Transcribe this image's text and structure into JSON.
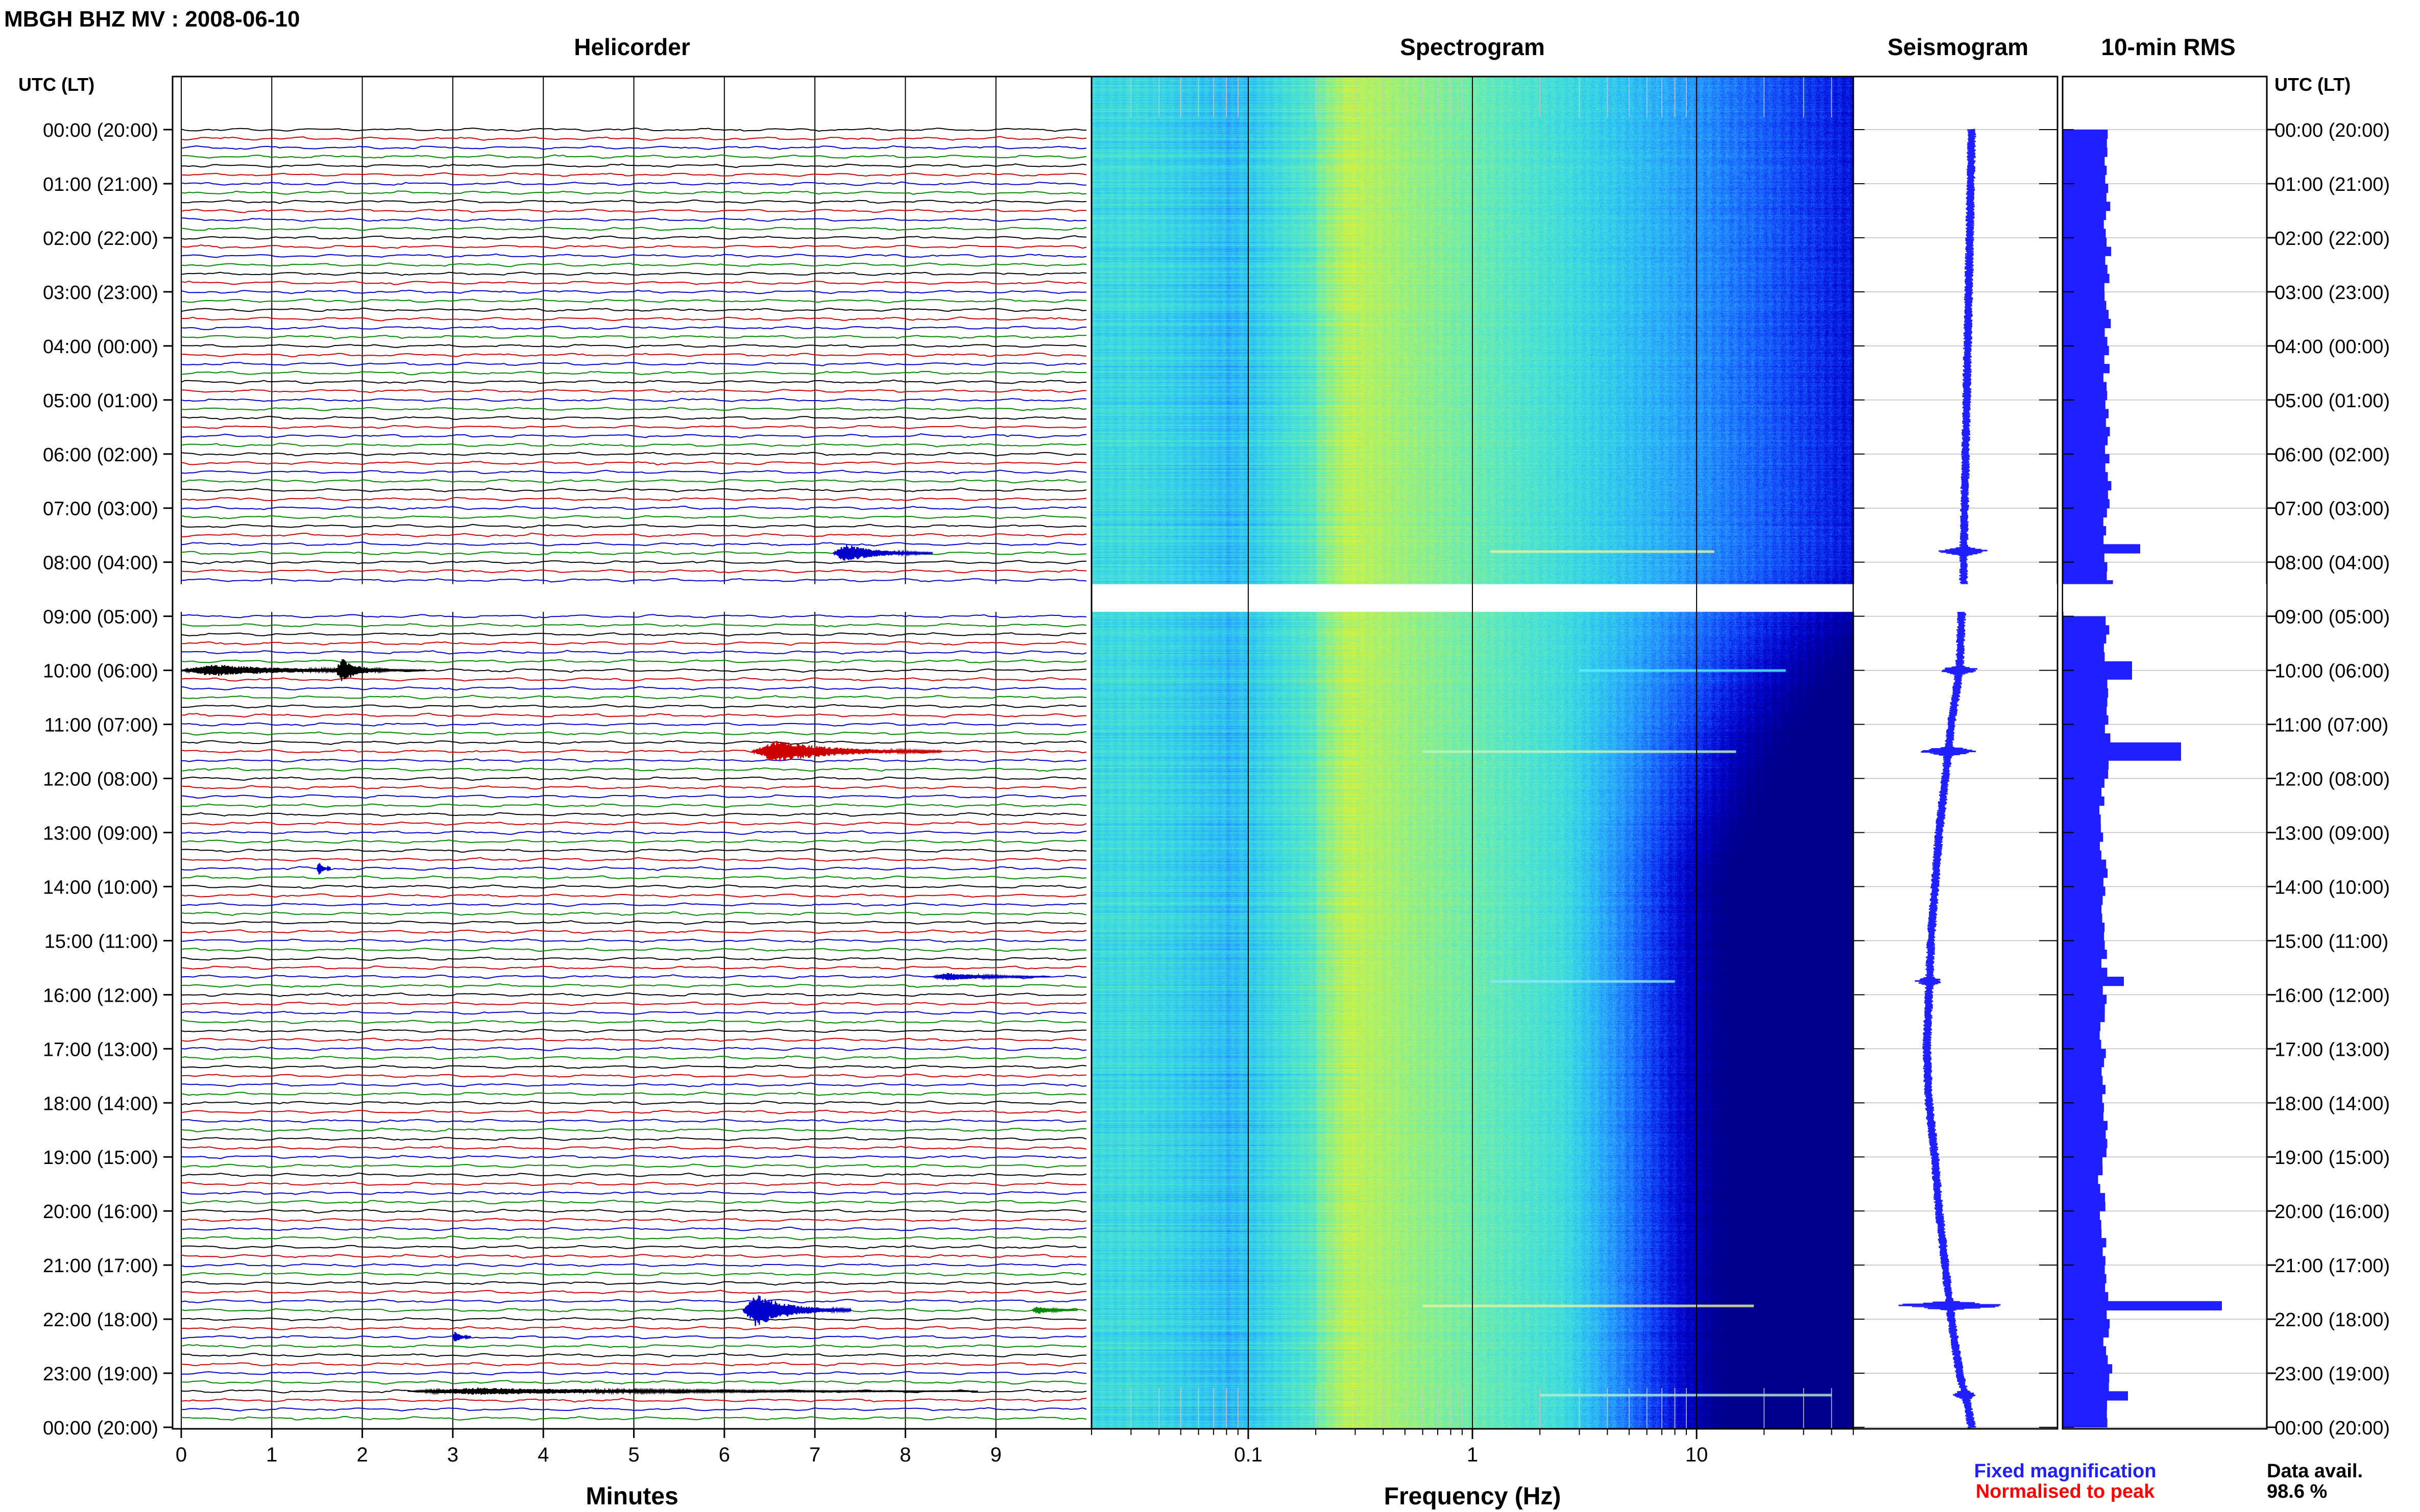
{
  "figure": {
    "title": "MBGH BHZ MV : 2008-06-10",
    "data_avail_label": "Data avail.",
    "data_avail_value": "98.6 %",
    "legend": {
      "fixed": "Fixed magnification",
      "normalised": "Normalised to peak",
      "colors": {
        "fixed": "#1f1fff",
        "normalised": "#ff0000"
      }
    }
  },
  "chart_data": [
    {
      "type": "line",
      "panel": "helicorder",
      "title": "Helicorder",
      "xlabel": "Minutes",
      "xlim": [
        0,
        10
      ],
      "x_ticks": [
        0,
        1,
        2,
        3,
        4,
        5,
        6,
        7,
        8,
        9
      ],
      "time_axis_label": "UTC (LT)",
      "row_labels": [
        "00:00 (20:00)",
        "01:00 (21:00)",
        "02:00 (22:00)",
        "03:00 (23:00)",
        "04:00 (00:00)",
        "05:00 (01:00)",
        "06:00 (02:00)",
        "07:00 (03:00)",
        "08:00 (04:00)",
        "09:00 (05:00)",
        "10:00 (06:00)",
        "11:00 (07:00)",
        "12:00 (08:00)",
        "13:00 (09:00)",
        "14:00 (10:00)",
        "15:00 (11:00)",
        "16:00 (12:00)",
        "17:00 (13:00)",
        "18:00 (14:00)",
        "19:00 (15:00)",
        "20:00 (16:00)",
        "21:00 (17:00)",
        "22:00 (18:00)",
        "23:00 (19:00)",
        "00:00 (20:00)"
      ],
      "trace_colors": [
        "#000000",
        "#cc0000",
        "#0000cc",
        "#008800"
      ],
      "gap": {
        "start_hour": 8.5,
        "end_hour": 8.9
      },
      "events": [
        {
          "hour": 7.75,
          "start_min": 7.2,
          "end_min": 8.3,
          "color": "#0000cc",
          "amp": 0.9
        },
        {
          "hour": 10.0,
          "start_min": 0.0,
          "end_min": 2.7,
          "color": "#000000",
          "amp": 0.6
        },
        {
          "hour": 10.0,
          "start_min": 1.7,
          "end_min": 2.3,
          "color": "#000000",
          "amp": 1.2
        },
        {
          "hour": 11.5,
          "start_min": 6.3,
          "end_min": 8.4,
          "color": "#cc0000",
          "amp": 1.1
        },
        {
          "hour": 13.6,
          "start_min": 1.5,
          "end_min": 1.65,
          "color": "#0000cc",
          "amp": 0.7
        },
        {
          "hour": 15.65,
          "start_min": 8.3,
          "end_min": 9.6,
          "color": "#0000cc",
          "amp": 0.4
        },
        {
          "hour": 21.75,
          "start_min": 6.2,
          "end_min": 7.4,
          "color": "#0000cc",
          "amp": 1.6
        },
        {
          "hour": 21.75,
          "start_min": 9.4,
          "end_min": 9.9,
          "color": "#008800",
          "amp": 0.4
        },
        {
          "hour": 22.25,
          "start_min": 3.0,
          "end_min": 3.2,
          "color": "#0000cc",
          "amp": 0.6
        },
        {
          "hour": 23.25,
          "start_min": 2.5,
          "end_min": 8.8,
          "color": "#000000",
          "amp": 0.35
        }
      ]
    },
    {
      "type": "heatmap",
      "panel": "spectrogram",
      "title": "Spectrogram",
      "xlabel": "Frequency (Hz)",
      "x_scale": "log",
      "xlim": [
        0.02,
        50
      ],
      "x_tick_values": [
        0.1,
        1,
        10
      ],
      "x_tick_labels": [
        "0.1",
        "1",
        "10"
      ],
      "colormap": [
        "#00008a",
        "#0000d0",
        "#1450ff",
        "#28a0ff",
        "#35d6e8",
        "#5ceac2",
        "#9cf07c",
        "#d8f23a"
      ],
      "lines": [
        {
          "hour": 7.8,
          "f_min": 1.2,
          "f_max": 12,
          "color": "#e8f2a0"
        },
        {
          "hour": 10.0,
          "f_min": 3,
          "f_max": 25,
          "color": "#58f0ff"
        },
        {
          "hour": 11.5,
          "f_min": 0.6,
          "f_max": 15,
          "color": "#bdf6c0"
        },
        {
          "hour": 15.75,
          "f_min": 1.2,
          "f_max": 8,
          "color": "#8ce8ff"
        },
        {
          "hour": 21.75,
          "f_min": 0.6,
          "f_max": 18,
          "color": "#e4f2a0"
        },
        {
          "hour": 23.4,
          "f_min": 2,
          "f_max": 40,
          "color": "#b0f0d0"
        }
      ]
    },
    {
      "type": "line",
      "panel": "seismogram",
      "title": "Seismogram",
      "baseline": [
        [
          0,
          0.58
        ],
        [
          2,
          0.57
        ],
        [
          4,
          0.56
        ],
        [
          6,
          0.55
        ],
        [
          8,
          0.54
        ],
        [
          8.5,
          0.54
        ],
        [
          9,
          0.53
        ],
        [
          10,
          0.52
        ],
        [
          11,
          0.48
        ],
        [
          12,
          0.45
        ],
        [
          13,
          0.42
        ],
        [
          14,
          0.4
        ],
        [
          15,
          0.38
        ],
        [
          16,
          0.37
        ],
        [
          17,
          0.36
        ],
        [
          18,
          0.37
        ],
        [
          19,
          0.4
        ],
        [
          20,
          0.42
        ],
        [
          21,
          0.45
        ],
        [
          22,
          0.48
        ],
        [
          23,
          0.52
        ],
        [
          23.6,
          0.56
        ],
        [
          24,
          0.58
        ]
      ],
      "spikes": [
        {
          "hour": 7.8,
          "amp": 0.12
        },
        {
          "hour": 10.0,
          "amp": 0.1
        },
        {
          "hour": 11.5,
          "amp": 0.16
        },
        {
          "hour": 15.75,
          "amp": 0.06
        },
        {
          "hour": 21.75,
          "amp": 0.3
        },
        {
          "hour": 23.4,
          "amp": 0.05
        }
      ],
      "color": "#1f1fff"
    },
    {
      "type": "bar",
      "panel": "rms",
      "title": "10-min RMS",
      "color": "#1f1fff",
      "base_level": 0.22,
      "peaks": [
        {
          "hour": 7.8,
          "value": 0.38
        },
        {
          "hour": 10.0,
          "value": 0.34
        },
        {
          "hour": 11.5,
          "value": 0.58
        },
        {
          "hour": 15.75,
          "value": 0.3
        },
        {
          "hour": 21.75,
          "value": 0.78
        },
        {
          "hour": 23.4,
          "value": 0.32
        }
      ]
    }
  ]
}
